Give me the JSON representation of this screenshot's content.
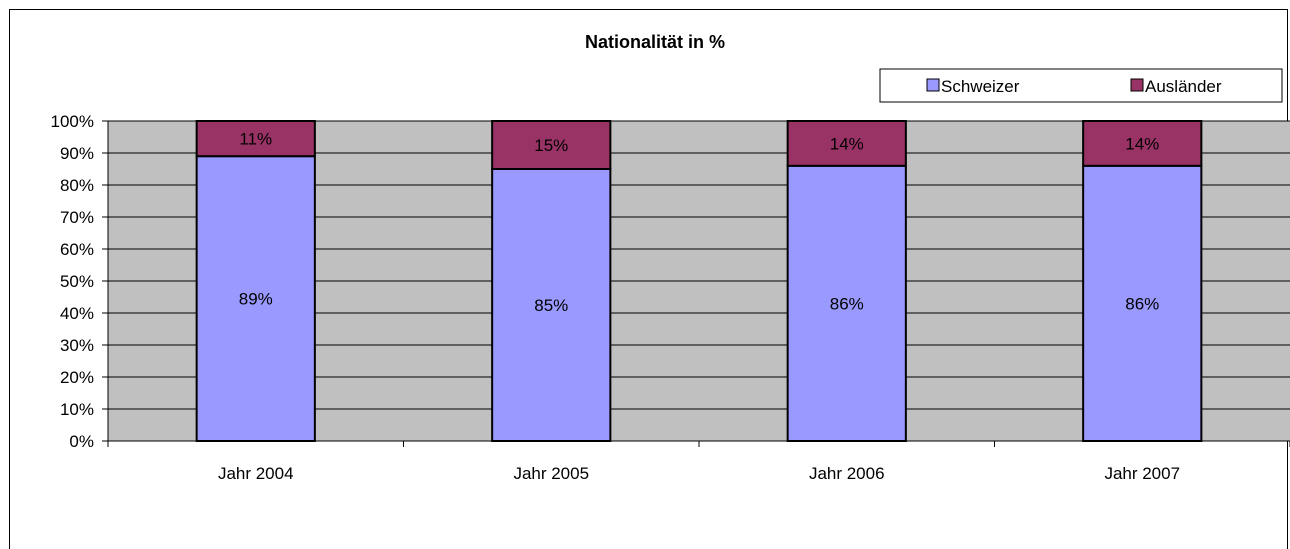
{
  "chart_data": {
    "type": "bar",
    "stacked": true,
    "title": "Nationalität in %",
    "categories": [
      "Jahr 2004",
      "Jahr 2005",
      "Jahr 2006",
      "Jahr 2007"
    ],
    "series": [
      {
        "name": "Schweizer",
        "values": [
          89,
          85,
          86,
          86
        ],
        "labels": [
          "89%",
          "85%",
          "86%",
          "86%"
        ],
        "color": "#9999ff"
      },
      {
        "name": "Ausländer",
        "values": [
          11,
          15,
          14,
          14
        ],
        "labels": [
          "11%",
          "15%",
          "14%",
          "14%"
        ],
        "color": "#993366"
      }
    ],
    "ylim": [
      0,
      100
    ],
    "yticks": [
      "0%",
      "10%",
      "20%",
      "30%",
      "40%",
      "50%",
      "60%",
      "70%",
      "80%",
      "90%",
      "100%"
    ],
    "plot_background": "#c0c0c0",
    "grid": true,
    "legend": "top-right"
  }
}
